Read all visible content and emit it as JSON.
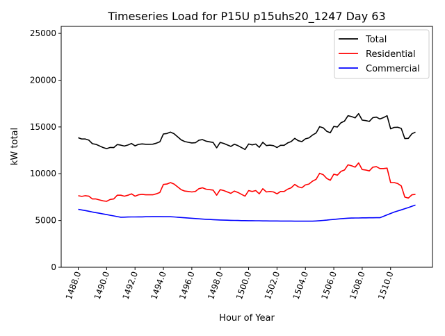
{
  "chart_data": {
    "type": "line",
    "title": "Timeseries Load for P15U p15uhs20_1247  Day 63",
    "xlabel": "Hour of Year",
    "ylabel": "kW total",
    "xlim": [
      1486.8,
      1512.95
    ],
    "ylim": [
      0,
      25750
    ],
    "x_start": 1488,
    "x_step": 0.25,
    "xticks": [
      1488,
      1490,
      1492,
      1494,
      1496,
      1498,
      1500,
      1502,
      1504,
      1506,
      1508,
      1510
    ],
    "xtick_labels": [
      "1488.0",
      "1490.0",
      "1492.0",
      "1494.0",
      "1496.0",
      "1498.0",
      "1500.0",
      "1502.0",
      "1504.0",
      "1506.0",
      "1508.0",
      "1510.0"
    ],
    "yticks": [
      0,
      5000,
      10000,
      15000,
      20000,
      25000
    ],
    "ytick_labels": [
      "0",
      "5000",
      "10000",
      "15000",
      "20000",
      "25000"
    ],
    "grid": false,
    "legend_position": "top-right",
    "series": [
      {
        "name": "Total",
        "color": "#000000",
        "values": [
          13850,
          13710,
          13710,
          13590,
          13210,
          13140,
          12970,
          12800,
          12680,
          12810,
          12790,
          13120,
          13050,
          12960,
          13070,
          13230,
          12980,
          13140,
          13190,
          13150,
          13150,
          13160,
          13260,
          13410,
          14250,
          14300,
          14450,
          14280,
          13950,
          13620,
          13440,
          13360,
          13290,
          13310,
          13580,
          13650,
          13480,
          13410,
          13340,
          12770,
          13350,
          13240,
          13080,
          12920,
          13160,
          13000,
          12790,
          12590,
          13180,
          13080,
          13170,
          12820,
          13360,
          13010,
          13050,
          13000,
          12800,
          13040,
          13040,
          13290,
          13440,
          13780,
          13530,
          13430,
          13730,
          13830,
          14130,
          14350,
          15030,
          14910,
          14540,
          14380,
          15060,
          15000,
          15440,
          15620,
          16200,
          16110,
          15970,
          16420,
          15730,
          15680,
          15590,
          15990,
          16050,
          15850,
          16000,
          16200,
          14800,
          14950,
          14970,
          14840,
          13760,
          13780,
          14270,
          14450
        ]
      },
      {
        "name": "Residential",
        "color": "#ff0000",
        "values": [
          7650,
          7580,
          7650,
          7600,
          7300,
          7300,
          7200,
          7100,
          7050,
          7250,
          7300,
          7700,
          7700,
          7600,
          7700,
          7850,
          7600,
          7750,
          7800,
          7750,
          7750,
          7750,
          7850,
          8000,
          8850,
          8900,
          9050,
          8900,
          8600,
          8300,
          8150,
          8100,
          8050,
          8100,
          8400,
          8500,
          8350,
          8300,
          8250,
          7700,
          8300,
          8200,
          8050,
          7900,
          8150,
          8000,
          7800,
          7600,
          8200,
          8100,
          8200,
          7850,
          8400,
          8050,
          8100,
          8050,
          7850,
          8100,
          8100,
          8350,
          8500,
          8850,
          8600,
          8500,
          8800,
          8900,
          9200,
          9400,
          10050,
          9900,
          9500,
          9300,
          9950,
          9850,
          10250,
          10400,
          10950,
          10850,
          10700,
          11150,
          10450,
          10400,
          10300,
          10700,
          10750,
          10550,
          10550,
          10600,
          9050,
          9050,
          8950,
          8700,
          7500,
          7400,
          7750,
          7800
        ]
      },
      {
        "name": "Commercial",
        "color": "#0000ff",
        "values": [
          6200,
          6130,
          6060,
          5990,
          5910,
          5840,
          5770,
          5700,
          5630,
          5560,
          5490,
          5420,
          5350,
          5360,
          5370,
          5380,
          5380,
          5390,
          5390,
          5400,
          5400,
          5410,
          5410,
          5410,
          5400,
          5400,
          5400,
          5380,
          5350,
          5320,
          5290,
          5260,
          5240,
          5210,
          5180,
          5150,
          5130,
          5110,
          5090,
          5070,
          5050,
          5040,
          5030,
          5020,
          5010,
          5000,
          4990,
          4990,
          4980,
          4980,
          4970,
          4970,
          4960,
          4960,
          4950,
          4950,
          4950,
          4940,
          4940,
          4940,
          4940,
          4930,
          4930,
          4930,
          4930,
          4930,
          4930,
          4950,
          4980,
          5010,
          5040,
          5080,
          5110,
          5150,
          5190,
          5220,
          5250,
          5260,
          5270,
          5270,
          5280,
          5280,
          5290,
          5290,
          5300,
          5300,
          5450,
          5600,
          5750,
          5900,
          6020,
          6140,
          6260,
          6380,
          6520,
          6650
        ]
      }
    ]
  }
}
